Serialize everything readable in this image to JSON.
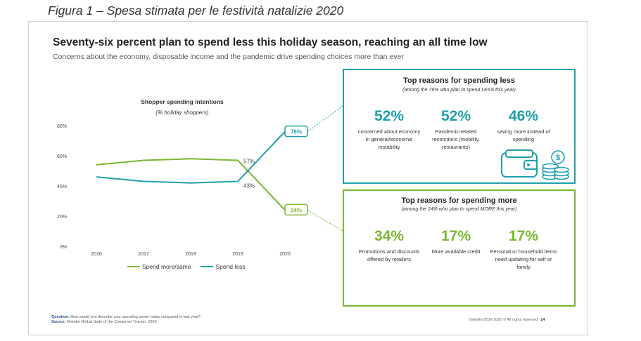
{
  "caption": "Figura 1 – Spesa stimata per le festività natalizie 2020",
  "slide": {
    "title": "Seventy-six percent plan to spend less this holiday season, reaching an all time low",
    "subtitle": "Concerns about the economy, disposable income and the pandemic drive spending choices more than ever"
  },
  "chart_data": {
    "type": "line",
    "title": "Shopper spending intentions",
    "subtitle": "(% holiday shoppers)",
    "categories": [
      "2016",
      "2017",
      "2018",
      "2019",
      "2020"
    ],
    "y_ticks": [
      "0%",
      "20%",
      "40%",
      "60%",
      "80%"
    ],
    "ylim": [
      0,
      80
    ],
    "grid": false,
    "legend_position": "bottom",
    "series": [
      {
        "name": "Spend more/same",
        "color": "#7ab832",
        "values": [
          54,
          57,
          58,
          57,
          24
        ]
      },
      {
        "name": "Spend less",
        "color": "#1fa0ad",
        "values": [
          46,
          43,
          42,
          43,
          76
        ]
      }
    ],
    "annotations": {
      "less_2019": "43%",
      "more_2019": "57%",
      "less_2020": "76%",
      "more_2020": "24%"
    }
  },
  "less_box": {
    "title": "Top reasons for spending less",
    "subtitle": "(among the 76% who plan to spend LESS this year)",
    "color": "#1fa0ad",
    "stats": [
      {
        "pct": "52%",
        "desc": "concerned about economy in general/economic instability"
      },
      {
        "pct": "52%",
        "desc": "Pandemic-related restrictions (mobility, restaurants)"
      },
      {
        "pct": "46%",
        "desc": "saving more instead of spending"
      }
    ],
    "icons": [
      "wallet-icon",
      "coins-icon"
    ]
  },
  "more_box": {
    "title": "Top reasons for spending more",
    "subtitle": "(among the 24% who plan to spend MORE this year)",
    "color": "#7ab832",
    "stats": [
      {
        "pct": "34%",
        "desc": "Promotions and discounts offered by retailers"
      },
      {
        "pct": "17%",
        "desc": "More available credit"
      },
      {
        "pct": "17%",
        "desc": "Personal or household items need updating for self or family"
      }
    ]
  },
  "footer": {
    "question_label": "Question:",
    "question": "How would you describe your spending power today compared to last year?",
    "source_label": "Source:",
    "source": "Deloitte Global State of the Consumer Tracker, 2020",
    "rights": "Deloitte DCM 2020 ©  All rights reserved",
    "page": "14"
  }
}
